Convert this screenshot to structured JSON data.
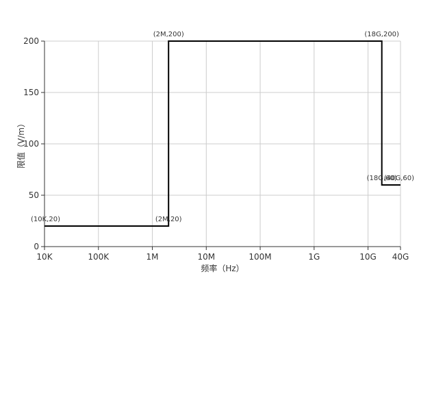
{
  "chart_data": {
    "type": "line",
    "step": true,
    "xlabel": "频率（Hz）",
    "ylabel": "限值（V/m）",
    "x_scale": "log",
    "x_ticks": [
      {
        "value": 10000,
        "label": "10K"
      },
      {
        "value": 100000,
        "label": "100K"
      },
      {
        "value": 1000000,
        "label": "1M"
      },
      {
        "value": 10000000,
        "label": "10M"
      },
      {
        "value": 100000000,
        "label": "100M"
      },
      {
        "value": 1000000000,
        "label": "1G"
      },
      {
        "value": 10000000000,
        "label": "10G"
      },
      {
        "value": 40000000000,
        "label": "40G"
      }
    ],
    "y_ticks": [
      0,
      50,
      100,
      150,
      200
    ],
    "xlim": [
      10000,
      40000000000
    ],
    "ylim": [
      0,
      200
    ],
    "grid": true,
    "series": [
      {
        "color": "#000000",
        "points": [
          {
            "x": 10000,
            "y": 20,
            "label": "(10K,20)"
          },
          {
            "x": 2000000,
            "y": 20,
            "label": "(2M,20)"
          },
          {
            "x": 2000000,
            "y": 200,
            "label": "(2M,200)"
          },
          {
            "x": 18000000000,
            "y": 200,
            "label": "(18G,200)"
          },
          {
            "x": 18000000000,
            "y": 60,
            "label": "(18G,60)"
          },
          {
            "x": 40000000000,
            "y": 60,
            "label": "(40G,60)"
          }
        ]
      }
    ]
  }
}
